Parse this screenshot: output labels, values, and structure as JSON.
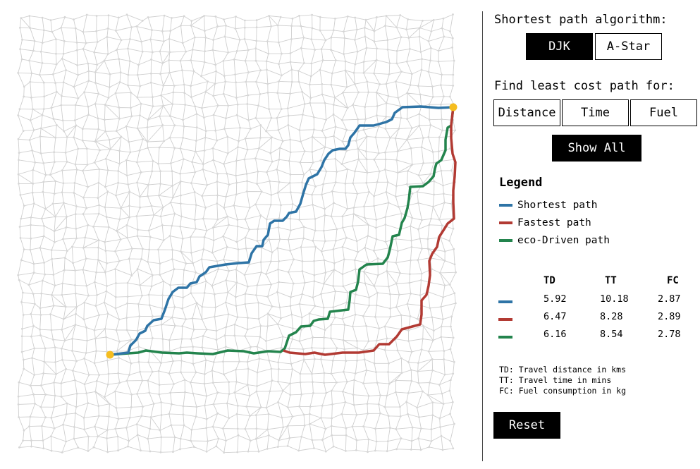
{
  "algorithm": {
    "heading": "Shortest path algorithm:",
    "options": [
      {
        "label": "DJK",
        "active": true
      },
      {
        "label": "A-Star",
        "active": false
      }
    ]
  },
  "cost": {
    "heading": "Find least cost path for:",
    "options": [
      {
        "label": "Distance"
      },
      {
        "label": "Time"
      },
      {
        "label": "Fuel"
      }
    ],
    "show_all_label": "Show All"
  },
  "legend": {
    "title": "Legend",
    "items": [
      {
        "label": "Shortest path",
        "color": "#2e74a6"
      },
      {
        "label": "Fastest path",
        "color": "#b23a33"
      },
      {
        "label": "eco-Driven path",
        "color": "#23844d"
      }
    ]
  },
  "table": {
    "headers": [
      "TD",
      "TT",
      "FC"
    ],
    "rows": [
      {
        "color": "#2e74a6",
        "td": "5.92",
        "tt": "10.18",
        "fc": "2.87"
      },
      {
        "color": "#b23a33",
        "td": "6.47",
        "tt": "8.28",
        "fc": "2.89"
      },
      {
        "color": "#23844d",
        "td": "6.16",
        "tt": "8.54",
        "fc": "2.78"
      }
    ]
  },
  "notes": [
    "TD: Travel distance in kms",
    "TT: Travel time in mins",
    "FC: Fuel consumption in kg"
  ],
  "reset_label": "Reset",
  "colors": {
    "shortest": "#2e74a6",
    "fastest": "#b23a33",
    "eco": "#23844d",
    "endpoint": "#f5bd1f",
    "grid": "#cfcfcf"
  }
}
